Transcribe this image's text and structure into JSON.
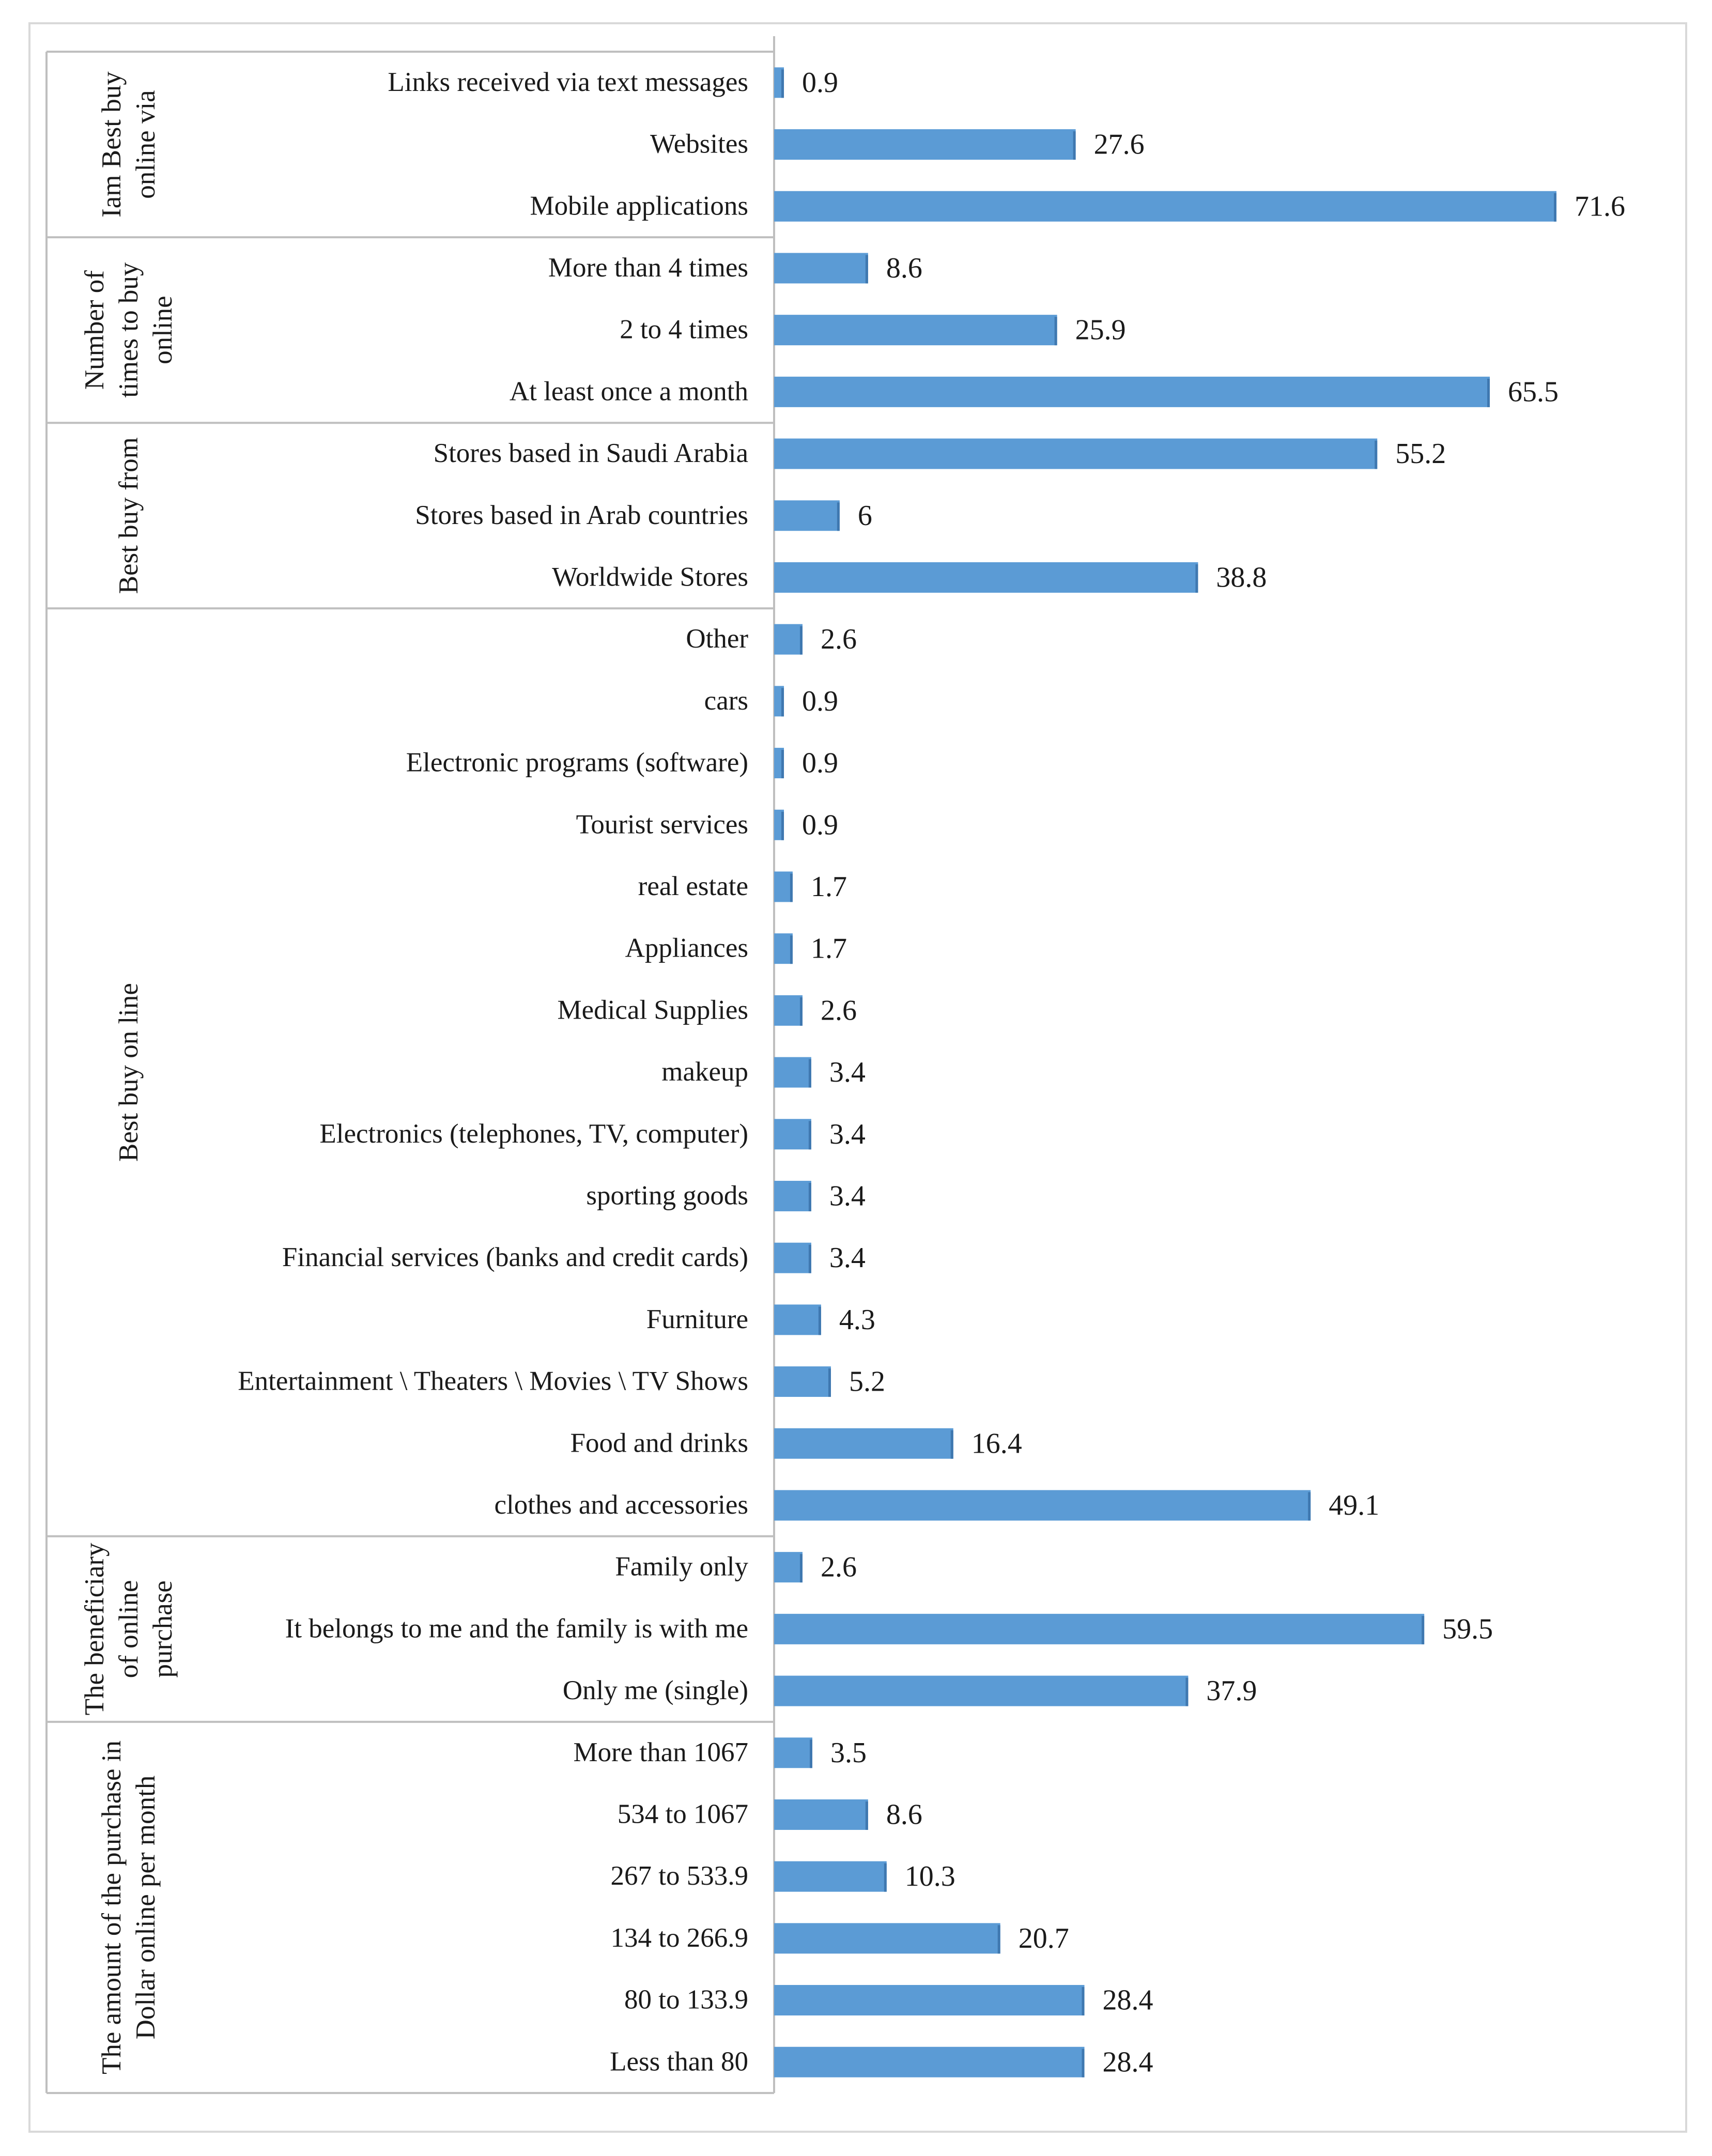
{
  "chart_data": {
    "type": "bar",
    "orientation": "horizontal",
    "grid": false,
    "legend": "none",
    "bar_color": "#5B9BD5",
    "groups": [
      {
        "label_lines": [
          "Iam Best buy",
          "online via"
        ],
        "items": [
          {
            "label": "Links received via text messages",
            "value": 0.9
          },
          {
            "label": "Websites",
            "value": 27.6
          },
          {
            "label": "Mobile applications",
            "value": 71.6
          }
        ]
      },
      {
        "label_lines": [
          "Number of",
          "times to buy",
          "online"
        ],
        "items": [
          {
            "label": "More than 4 times",
            "value": 8.6
          },
          {
            "label": "2 to 4 times",
            "value": 25.9
          },
          {
            "label": "At least once a month",
            "value": 65.5
          }
        ]
      },
      {
        "label_lines": [
          "Best buy from"
        ],
        "items": [
          {
            "label": "Stores based in Saudi Arabia",
            "value": 55.2
          },
          {
            "label": "Stores based in Arab countries",
            "value": 6
          },
          {
            "label": "Worldwide Stores",
            "value": 38.8
          }
        ]
      },
      {
        "label_lines": [
          "Best buy on line"
        ],
        "items": [
          {
            "label": "Other",
            "value": 2.6
          },
          {
            "label": "cars",
            "value": 0.9
          },
          {
            "label": "Electronic programs (software)",
            "value": 0.9
          },
          {
            "label": "Tourist services",
            "value": 0.9
          },
          {
            "label": "real estate",
            "value": 1.7
          },
          {
            "label": "Appliances",
            "value": 1.7
          },
          {
            "label": "Medical Supplies",
            "value": 2.6
          },
          {
            "label": "makeup",
            "value": 3.4
          },
          {
            "label": "Electronics (telephones, TV, computer)",
            "value": 3.4
          },
          {
            "label": "sporting goods",
            "value": 3.4
          },
          {
            "label": "Financial services (banks and credit cards)",
            "value": 3.4
          },
          {
            "label": "Furniture",
            "value": 4.3
          },
          {
            "label": "Entertainment \\ Theaters \\ Movies \\ TV Shows",
            "value": 5.2
          },
          {
            "label": "Food and drinks",
            "value": 16.4
          },
          {
            "label": "clothes and accessories",
            "value": 49.1
          }
        ]
      },
      {
        "label_lines": [
          "The beneficiary",
          "of online",
          "purchase"
        ],
        "items": [
          {
            "label": "Family only",
            "value": 2.6
          },
          {
            "label": "It belongs to me and the family is with me",
            "value": 59.5
          },
          {
            "label": "Only me (single)",
            "value": 37.9
          }
        ]
      },
      {
        "label_lines": [
          "The amount of the purchase in",
          "Dollar online per month"
        ],
        "items": [
          {
            "label": "More than 1067",
            "value": 3.5
          },
          {
            "label": "534 to 1067",
            "value": 8.6
          },
          {
            "label": "267 to 533.9",
            "value": 10.3
          },
          {
            "label": "134 to 266.9",
            "value": 20.7
          },
          {
            "label": "80 to 133.9",
            "value": 28.4
          },
          {
            "label": "Less than 80",
            "value": 28.4
          }
        ]
      }
    ]
  }
}
